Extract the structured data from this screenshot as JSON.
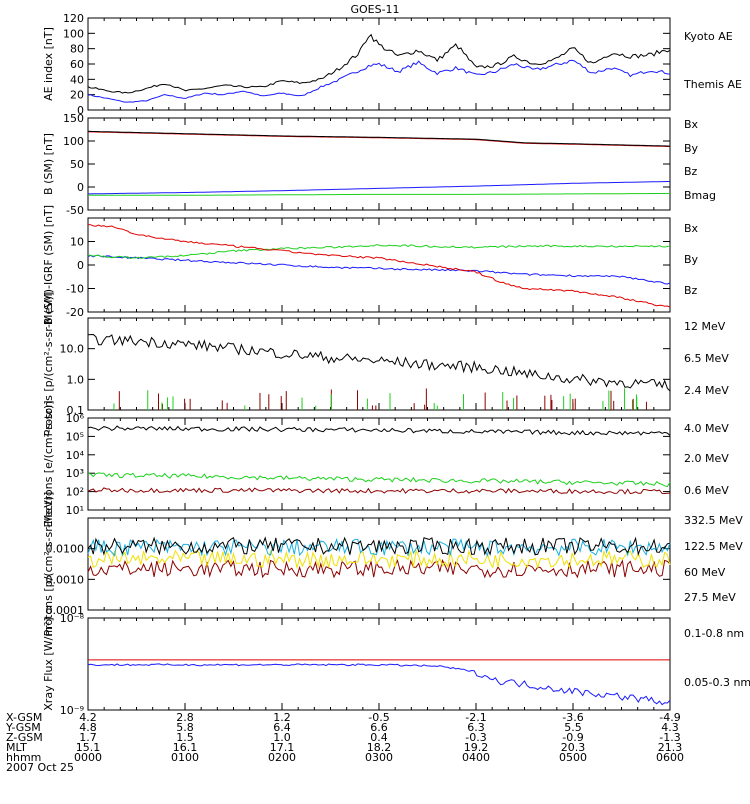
{
  "title": "GOES-11",
  "colors": {
    "black": "#000000",
    "blue": "#1a1aff",
    "green": "#1ed01e",
    "red": "#e00000",
    "darkred": "#8b0000",
    "yellow": "#f0e000",
    "cyan": "#1ab0e0"
  },
  "chart_data": [
    {
      "type": "line",
      "id": "ae",
      "ylabel": "AE index [nT]",
      "ylim": [
        0,
        120
      ],
      "ticks": [
        0,
        20,
        40,
        60,
        80,
        100,
        120
      ],
      "tick_labels": [
        "0",
        "20",
        "40",
        "60",
        "80",
        "100",
        "120"
      ],
      "series": [
        {
          "name": "Kyoto AE",
          "color": "blue",
          "x": [
            0,
            0.2,
            0.4,
            0.6,
            0.8,
            1.0,
            1.2,
            1.4,
            1.6,
            1.8,
            2.0,
            2.2,
            2.4,
            2.6,
            2.8,
            2.9,
            3.0,
            3.2,
            3.4,
            3.6,
            3.8,
            4.0,
            4.2,
            4.4,
            4.6,
            4.8,
            5.0,
            5.2,
            5.4,
            5.6,
            5.8,
            6.0
          ],
          "y": [
            20,
            15,
            10,
            12,
            20,
            15,
            22,
            20,
            25,
            18,
            22,
            18,
            30,
            40,
            52,
            58,
            60,
            50,
            62,
            48,
            55,
            45,
            50,
            60,
            52,
            58,
            65,
            48,
            55,
            45,
            52,
            48
          ]
        },
        {
          "name": "Themis AE",
          "color": "black",
          "x": [
            0,
            0.2,
            0.4,
            0.6,
            0.8,
            1.0,
            1.2,
            1.4,
            1.6,
            1.8,
            2.0,
            2.2,
            2.4,
            2.6,
            2.8,
            2.9,
            3.0,
            3.2,
            3.4,
            3.6,
            3.8,
            4.0,
            4.2,
            4.4,
            4.6,
            4.8,
            5.0,
            5.2,
            5.4,
            5.6,
            5.8,
            6.0
          ],
          "y": [
            30,
            25,
            22,
            28,
            35,
            25,
            28,
            32,
            30,
            30,
            38,
            35,
            40,
            55,
            75,
            100,
            85,
            70,
            78,
            65,
            85,
            55,
            58,
            70,
            60,
            65,
            80,
            60,
            75,
            70,
            72,
            80
          ]
        }
      ]
    },
    {
      "type": "line",
      "id": "bsm",
      "ylabel": "B (SM) [nT]",
      "ylim": [
        -50,
        150
      ],
      "ticks": [
        -50,
        0,
        50,
        100,
        150
      ],
      "tick_labels": [
        "-50",
        "0",
        "50",
        "100",
        "150"
      ],
      "series": [
        {
          "name": "Bx",
          "color": "blue",
          "x": [
            0,
            1,
            2,
            3,
            4,
            5,
            6
          ],
          "y": [
            -15,
            -12,
            -8,
            -3,
            2,
            8,
            12
          ]
        },
        {
          "name": "By",
          "color": "green",
          "x": [
            0,
            1,
            2,
            3,
            4,
            5,
            6
          ],
          "y": [
            -18,
            -18,
            -17,
            -16,
            -16,
            -15,
            -14
          ]
        },
        {
          "name": "Bz",
          "color": "red",
          "x": [
            0,
            1,
            2,
            3,
            4,
            4.5,
            5,
            6
          ],
          "y": [
            120,
            115,
            110,
            107,
            103,
            95,
            93,
            88
          ]
        },
        {
          "name": "Bmag",
          "color": "black",
          "x": [
            0,
            1,
            2,
            3,
            4,
            4.5,
            5,
            6
          ],
          "y": [
            121,
            116,
            111,
            108,
            104,
            96,
            94,
            89
          ]
        }
      ]
    },
    {
      "type": "line",
      "id": "bdiff",
      "ylabel": "B (SM)-IGRF (SM) [nT]",
      "ylim": [
        -20,
        20
      ],
      "ticks": [
        -20,
        -10,
        0,
        10
      ],
      "tick_labels": [
        "-20",
        "-10",
        "0",
        "10"
      ],
      "series": [
        {
          "name": "Bx",
          "color": "blue",
          "x": [
            0,
            0.5,
            1,
            1.5,
            2,
            2.5,
            3,
            3.5,
            4,
            4.5,
            5,
            5.5,
            6
          ],
          "y": [
            4,
            3,
            2,
            1,
            0,
            -1,
            -1.5,
            -2,
            -2.5,
            -4,
            -4.5,
            -5,
            -8
          ]
        },
        {
          "name": "By",
          "color": "green",
          "x": [
            0,
            0.5,
            1,
            1.5,
            2,
            2.5,
            3,
            3.5,
            4,
            4.5,
            5,
            5.5,
            6
          ],
          "y": [
            4,
            3,
            4,
            6,
            7,
            7.5,
            8.5,
            8,
            7.5,
            8,
            8,
            8,
            8
          ]
        },
        {
          "name": "Bz",
          "color": "red",
          "x": [
            0,
            0.3,
            0.5,
            0.8,
            1,
            1.5,
            2,
            2.5,
            3,
            3.5,
            4,
            4.3,
            4.5,
            5,
            5.5,
            6
          ],
          "y": [
            17,
            16,
            13,
            11,
            10,
            8,
            6,
            4,
            3,
            0,
            -3,
            -8,
            -10,
            -11,
            -14,
            -18
          ]
        }
      ]
    },
    {
      "type": "line",
      "id": "protons_low",
      "ylabel": "Protons [p/(cm²-s-sr-MeV)]",
      "yscale": "log",
      "ylim": [
        0.1,
        100
      ],
      "ticks": [
        0.1,
        1.0,
        10.0
      ],
      "tick_labels": [
        "0.1",
        "1.0",
        "10.0"
      ],
      "series": [
        {
          "name": "12 MeV",
          "color": "darkred",
          "x": [],
          "y": []
        },
        {
          "name": "6.5 MeV",
          "color": "green",
          "x": [],
          "y": []
        },
        {
          "name": "2.4 MeV",
          "color": "black",
          "x": [
            0,
            0.5,
            1,
            1.5,
            2,
            2.5,
            3,
            3.5,
            4,
            4.5,
            5,
            5.5,
            6
          ],
          "y": [
            20,
            18,
            14,
            10,
            7,
            5,
            4,
            3,
            2.5,
            1.5,
            1,
            0.8,
            0.6
          ]
        }
      ]
    },
    {
      "type": "line",
      "id": "electrons",
      "ylabel": "Electrons [e/(cm²-s-sr)]",
      "yscale": "log",
      "ylim": [
        10,
        1000000
      ],
      "ticks": [
        10,
        100,
        1000,
        10000,
        100000,
        1000000
      ],
      "tick_labels": [
        "10¹",
        "10²",
        "10³",
        "10⁴",
        "10⁵",
        "10⁶"
      ],
      "series": [
        {
          "name": "4.0 MeV",
          "color": "darkred",
          "x": [
            0,
            1,
            2,
            3,
            4,
            5,
            6
          ],
          "y": [
            120,
            120,
            115,
            110,
            110,
            105,
            100
          ]
        },
        {
          "name": "2.0 MeV",
          "color": "green",
          "x": [
            0,
            1,
            2,
            3,
            4,
            5,
            6
          ],
          "y": [
            800,
            700,
            550,
            450,
            380,
            320,
            250
          ]
        },
        {
          "name": "0.6 MeV",
          "color": "black",
          "x": [
            0,
            1,
            2,
            3,
            4,
            5,
            6
          ],
          "y": [
            280000,
            260000,
            240000,
            220000,
            180000,
            160000,
            150000
          ]
        }
      ]
    },
    {
      "type": "line",
      "id": "protons_high",
      "ylabel": "Protons [p/(cm²-s-sr-MeV)]",
      "yscale": "log",
      "ylim": [
        0.0001,
        0.1
      ],
      "ticks": [
        0.0001,
        0.001,
        0.01
      ],
      "tick_labels": [
        "0.0001",
        "0.0010",
        "0.0100"
      ],
      "series": [
        {
          "name": "332.5 MeV",
          "color": "darkred",
          "x": [
            0,
            6
          ],
          "y": [
            0.0022,
            0.0022
          ]
        },
        {
          "name": "122.5 MeV",
          "color": "yellow",
          "x": [
            0,
            6
          ],
          "y": [
            0.0045,
            0.0045
          ]
        },
        {
          "name": "60 MeV",
          "color": "cyan",
          "x": [
            0,
            6
          ],
          "y": [
            0.011,
            0.011
          ]
        },
        {
          "name": "27.5 MeV",
          "color": "black",
          "x": [
            0,
            6
          ],
          "y": [
            0.012,
            0.012
          ]
        }
      ]
    },
    {
      "type": "line",
      "id": "xray",
      "ylabel": "Xray Flux [W/m²]",
      "yscale": "log",
      "ylim": [
        1e-09,
        1e-08
      ],
      "ticks": [
        1e-09,
        1e-08
      ],
      "tick_labels": [
        "10⁻⁹",
        "10⁻⁸"
      ],
      "series": [
        {
          "name": "0.1-0.8 nm",
          "color": "red",
          "x": [
            0,
            6
          ],
          "y": [
            3.5e-09,
            3.5e-09
          ]
        },
        {
          "name": "0.05-0.3 nm",
          "color": "blue",
          "x": [
            0,
            1,
            2,
            3,
            3.6,
            4.0,
            4.2,
            4.5,
            5,
            5.5,
            6
          ],
          "y": [
            3.1e-09,
            3.1e-09,
            3.1e-09,
            3.1e-09,
            3e-09,
            2.6e-09,
            2.1e-09,
            1.9e-09,
            1.6e-09,
            1.4e-09,
            1.2e-09
          ]
        }
      ]
    }
  ],
  "bottom": {
    "row_labels": [
      "X-GSM",
      "Y-GSM",
      "Z-GSM",
      "MLT",
      "hhmm",
      "2007 Oct 25"
    ],
    "columns": [
      [
        "4.2",
        "4.8",
        "1.7",
        "15.1",
        "0000"
      ],
      [
        "2.8",
        "5.8",
        "1.5",
        "16.1",
        "0100"
      ],
      [
        "1.2",
        "6.4",
        "1.0",
        "17.1",
        "0200"
      ],
      [
        "-0.5",
        "6.6",
        "0.4",
        "18.2",
        "0300"
      ],
      [
        "-2.1",
        "6.3",
        "-0.3",
        "19.2",
        "0400"
      ],
      [
        "-3.6",
        "5.5",
        "-0.9",
        "20.3",
        "0500"
      ],
      [
        "-4.9",
        "4.3",
        "-1.3",
        "21.3",
        "0600"
      ]
    ]
  }
}
